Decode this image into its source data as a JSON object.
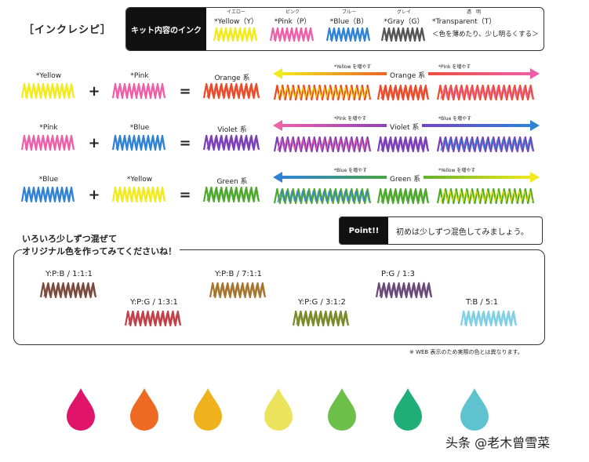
{
  "title": "［インクレシピ］",
  "kit": {
    "label": "キット内容のインク",
    "inks": [
      {
        "ruby": "イエロー",
        "name": "*Yellow（Y）",
        "color": "#f2ea1c"
      },
      {
        "ruby": "ピンク",
        "name": "*Pink（P）",
        "color": "#ee5fa8"
      },
      {
        "ruby": "ブルー",
        "name": "*Blue（B）",
        "color": "#2f82d6"
      },
      {
        "ruby": "グレイ",
        "name": "*Gray（G）",
        "color": "#555555"
      },
      {
        "ruby": "透　明",
        "name": "*Transparent（T）",
        "note": "＜色を薄めたり、少し明るくする＞"
      }
    ]
  },
  "rows": [
    {
      "a": "*Yellow",
      "b": "*Pink",
      "result": "Orange 系",
      "plus": "+",
      "eq": "=",
      "left_arrow": "*Yellow を増やす",
      "family": "Orange 系",
      "right_arrow": "*Pink を増やす",
      "a_color": "#f2ea1c",
      "b_color": "#ee5fa8",
      "r_color": "#ea4b2a"
    },
    {
      "a": "*Pink",
      "b": "*Blue",
      "result": "Violet 系",
      "plus": "+",
      "eq": "=",
      "left_arrow": "*Pink を増やす",
      "family": "Violet 系",
      "right_arrow": "*Blue を増やす",
      "a_color": "#ee5fa8",
      "b_color": "#2f82d6",
      "r_color": "#7b3fb8"
    },
    {
      "a": "*Blue",
      "b": "*Yellow",
      "result": "Green 系",
      "plus": "+",
      "eq": "=",
      "left_arrow": "*Blue を増やす",
      "family": "Green 系",
      "right_arrow": "*Yellow を増やす",
      "a_color": "#2f82d6",
      "b_color": "#f2ea1c",
      "r_color": "#4ea82e"
    }
  ],
  "point": {
    "tag": "Point!!",
    "text": "初めは少しずつ混色してみましょう。"
  },
  "try": {
    "line1": "いろいろ少しずつ混ぜて",
    "line2": "オリジナル色を作ってみてくださいね！"
  },
  "mixes": [
    {
      "ratio": "Y:P:B / 1:1:1",
      "color": "#7a4a3e"
    },
    {
      "ratio": "Y:P:G / 1:3:1",
      "color": "#c0404a"
    },
    {
      "ratio": "Y:P:B / 7:1:1",
      "color": "#a4762f"
    },
    {
      "ratio": "Y:P:G / 3:1:2",
      "color": "#7a8a2a"
    },
    {
      "ratio": "P:G / 1:3",
      "color": "#6a4a78"
    },
    {
      "ratio": "T:B / 5:1",
      "color": "#7fd0e6"
    }
  ],
  "note": "※ WEB 表示のため実際の色とは異なります。",
  "drops": [
    "#e0156a",
    "#ee6a22",
    "#f0b21c",
    "#ece35c",
    "#6cc04a",
    "#1fae78",
    "#5fc3cf"
  ],
  "watermark": "头条 @老木曾雪菜"
}
